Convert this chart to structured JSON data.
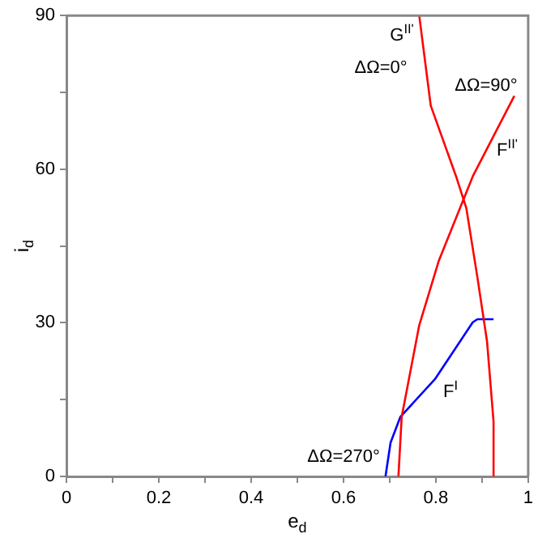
{
  "chart_data": {
    "type": "line",
    "xlabel": "e$_{d}$",
    "ylabel": "i$_{d}$",
    "series": [
      {
        "color": "#ff0000",
        "x": [
          0.764,
          0.789,
          0.81,
          0.845,
          0.866,
          0.89,
          0.911,
          0.925,
          0.925
        ],
        "values": [
          90,
          72.4,
          67.1,
          58.3,
          52.4,
          38.9,
          26.3,
          10.7,
          0
        ]
      },
      {
        "color": "#ff0000",
        "x": [
          0.97,
          0.928,
          0.88,
          0.806,
          0.764,
          0.726,
          0.719
        ],
        "values": [
          74.3,
          67,
          58.6,
          42,
          29.5,
          11.6,
          0
        ]
      },
      {
        "color": "#0000ff",
        "x": [
          0.691,
          0.702,
          0.723,
          0.799,
          0.88,
          0.89,
          0.925
        ],
        "values": [
          0,
          6.6,
          11.6,
          19.1,
          30.1,
          30.7,
          30.7
        ]
      }
    ],
    "xlim": [
      0,
      1
    ],
    "ylim": [
      0,
      90
    ],
    "xticks": [
      0,
      {
        "value": 0.1,
        "label": null
      },
      {
        "value": 0.2,
        "label": "0.2"
      },
      {
        "value": 0.3,
        "label": null
      },
      {
        "value": 0.4,
        "label": "0.4"
      },
      {
        "value": 0.5,
        "label": null
      },
      {
        "value": 0.6,
        "label": "0.6"
      },
      {
        "value": 0.7,
        "label": null
      },
      {
        "value": 0.8,
        "label": "0.8"
      },
      {
        "value": 0.9,
        "label": null
      },
      1
    ],
    "yticks": [
      0,
      {
        "value": 15,
        "label": null
      },
      30,
      {
        "value": 45,
        "label": null
      },
      60,
      {
        "value": 75,
        "label": null
      },
      90
    ],
    "annotations": [
      "G$^{II'}$",
      "ΔΩ=0°",
      "ΔΩ=90°",
      "F$^{II'}$",
      "F$^{I}$",
      "ΔΩ=270°"
    ],
    "grid": false,
    "legend": false,
    "marker": "none",
    "line_style": "solid"
  }
}
